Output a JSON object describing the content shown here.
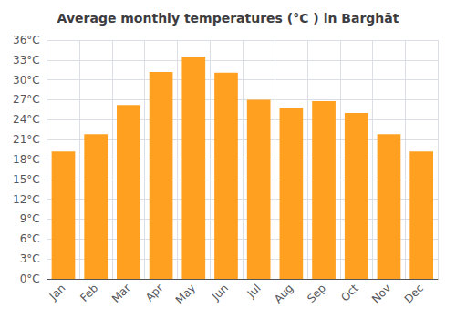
{
  "chart_data": {
    "type": "bar",
    "title": "Average monthly temperatures (°C ) in Barghāt",
    "categories": [
      "Jan",
      "Feb",
      "Mar",
      "Apr",
      "May",
      "Jun",
      "Jul",
      "Aug",
      "Sep",
      "Oct",
      "Nov",
      "Dec"
    ],
    "values": [
      19.2,
      21.8,
      26.2,
      31.2,
      33.5,
      31.1,
      27.0,
      25.8,
      26.8,
      25.0,
      21.8,
      19.2
    ],
    "color": "#FFA020",
    "ylim": [
      0,
      36
    ],
    "yticks": [
      {
        "value": 0,
        "label": "0°C"
      },
      {
        "value": 3,
        "label": "3°C"
      },
      {
        "value": 6,
        "label": "6°C"
      },
      {
        "value": 9,
        "label": "9°C"
      },
      {
        "value": 12,
        "label": "12°C"
      },
      {
        "value": 15,
        "label": "15°C"
      },
      {
        "value": 18,
        "label": "18°C"
      },
      {
        "value": 21,
        "label": "21°C"
      },
      {
        "value": 24,
        "label": "24°C"
      },
      {
        "value": 27,
        "label": "27°C"
      },
      {
        "value": 30,
        "label": "30°C"
      },
      {
        "value": 33,
        "label": "33°C"
      },
      {
        "value": 36,
        "label": "36°C"
      }
    ],
    "grid": true
  }
}
